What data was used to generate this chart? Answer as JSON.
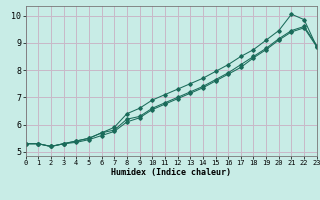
{
  "xlabel": "Humidex (Indice chaleur)",
  "bg_color": "#c8ece6",
  "grid_color": "#c8b8c8",
  "line_color": "#1a6b5a",
  "xlim": [
    0,
    23
  ],
  "ylim": [
    4.85,
    10.35
  ],
  "xticks": [
    0,
    1,
    2,
    3,
    4,
    5,
    6,
    7,
    8,
    9,
    10,
    11,
    12,
    13,
    14,
    15,
    16,
    17,
    18,
    19,
    20,
    21,
    22,
    23
  ],
  "yticks": [
    5,
    6,
    7,
    8,
    9,
    10
  ],
  "line1_x": [
    0,
    1,
    2,
    3,
    4,
    5,
    6,
    7,
    8,
    9,
    10,
    11,
    12,
    13,
    14,
    15,
    16,
    17,
    18,
    19,
    20,
    21,
    22,
    23
  ],
  "line1_y": [
    5.3,
    5.3,
    5.2,
    5.3,
    5.4,
    5.5,
    5.7,
    5.8,
    6.2,
    6.3,
    6.6,
    6.8,
    7.0,
    7.2,
    7.4,
    7.65,
    7.9,
    8.2,
    8.5,
    8.8,
    9.15,
    9.45,
    9.6,
    8.9
  ],
  "line2_x": [
    0,
    1,
    2,
    3,
    4,
    5,
    6,
    7,
    8,
    9,
    10,
    11,
    12,
    13,
    14,
    15,
    16,
    17,
    18,
    19,
    20,
    21,
    22,
    23
  ],
  "line2_y": [
    5.3,
    5.3,
    5.2,
    5.3,
    5.35,
    5.45,
    5.6,
    5.75,
    6.1,
    6.25,
    6.55,
    6.75,
    6.95,
    7.15,
    7.35,
    7.6,
    7.85,
    8.1,
    8.45,
    8.75,
    9.1,
    9.4,
    9.55,
    8.85
  ],
  "line3_x": [
    0,
    1,
    2,
    3,
    4,
    5,
    6,
    7,
    8,
    9,
    10,
    11,
    12,
    13,
    14,
    15,
    16,
    17,
    18,
    19,
    20,
    21,
    22,
    23
  ],
  "line3_y": [
    5.3,
    5.3,
    5.2,
    5.3,
    5.4,
    5.5,
    5.7,
    5.9,
    6.4,
    6.6,
    6.9,
    7.1,
    7.3,
    7.5,
    7.7,
    7.95,
    8.2,
    8.5,
    8.75,
    9.1,
    9.45,
    10.05,
    9.85,
    8.85
  ]
}
